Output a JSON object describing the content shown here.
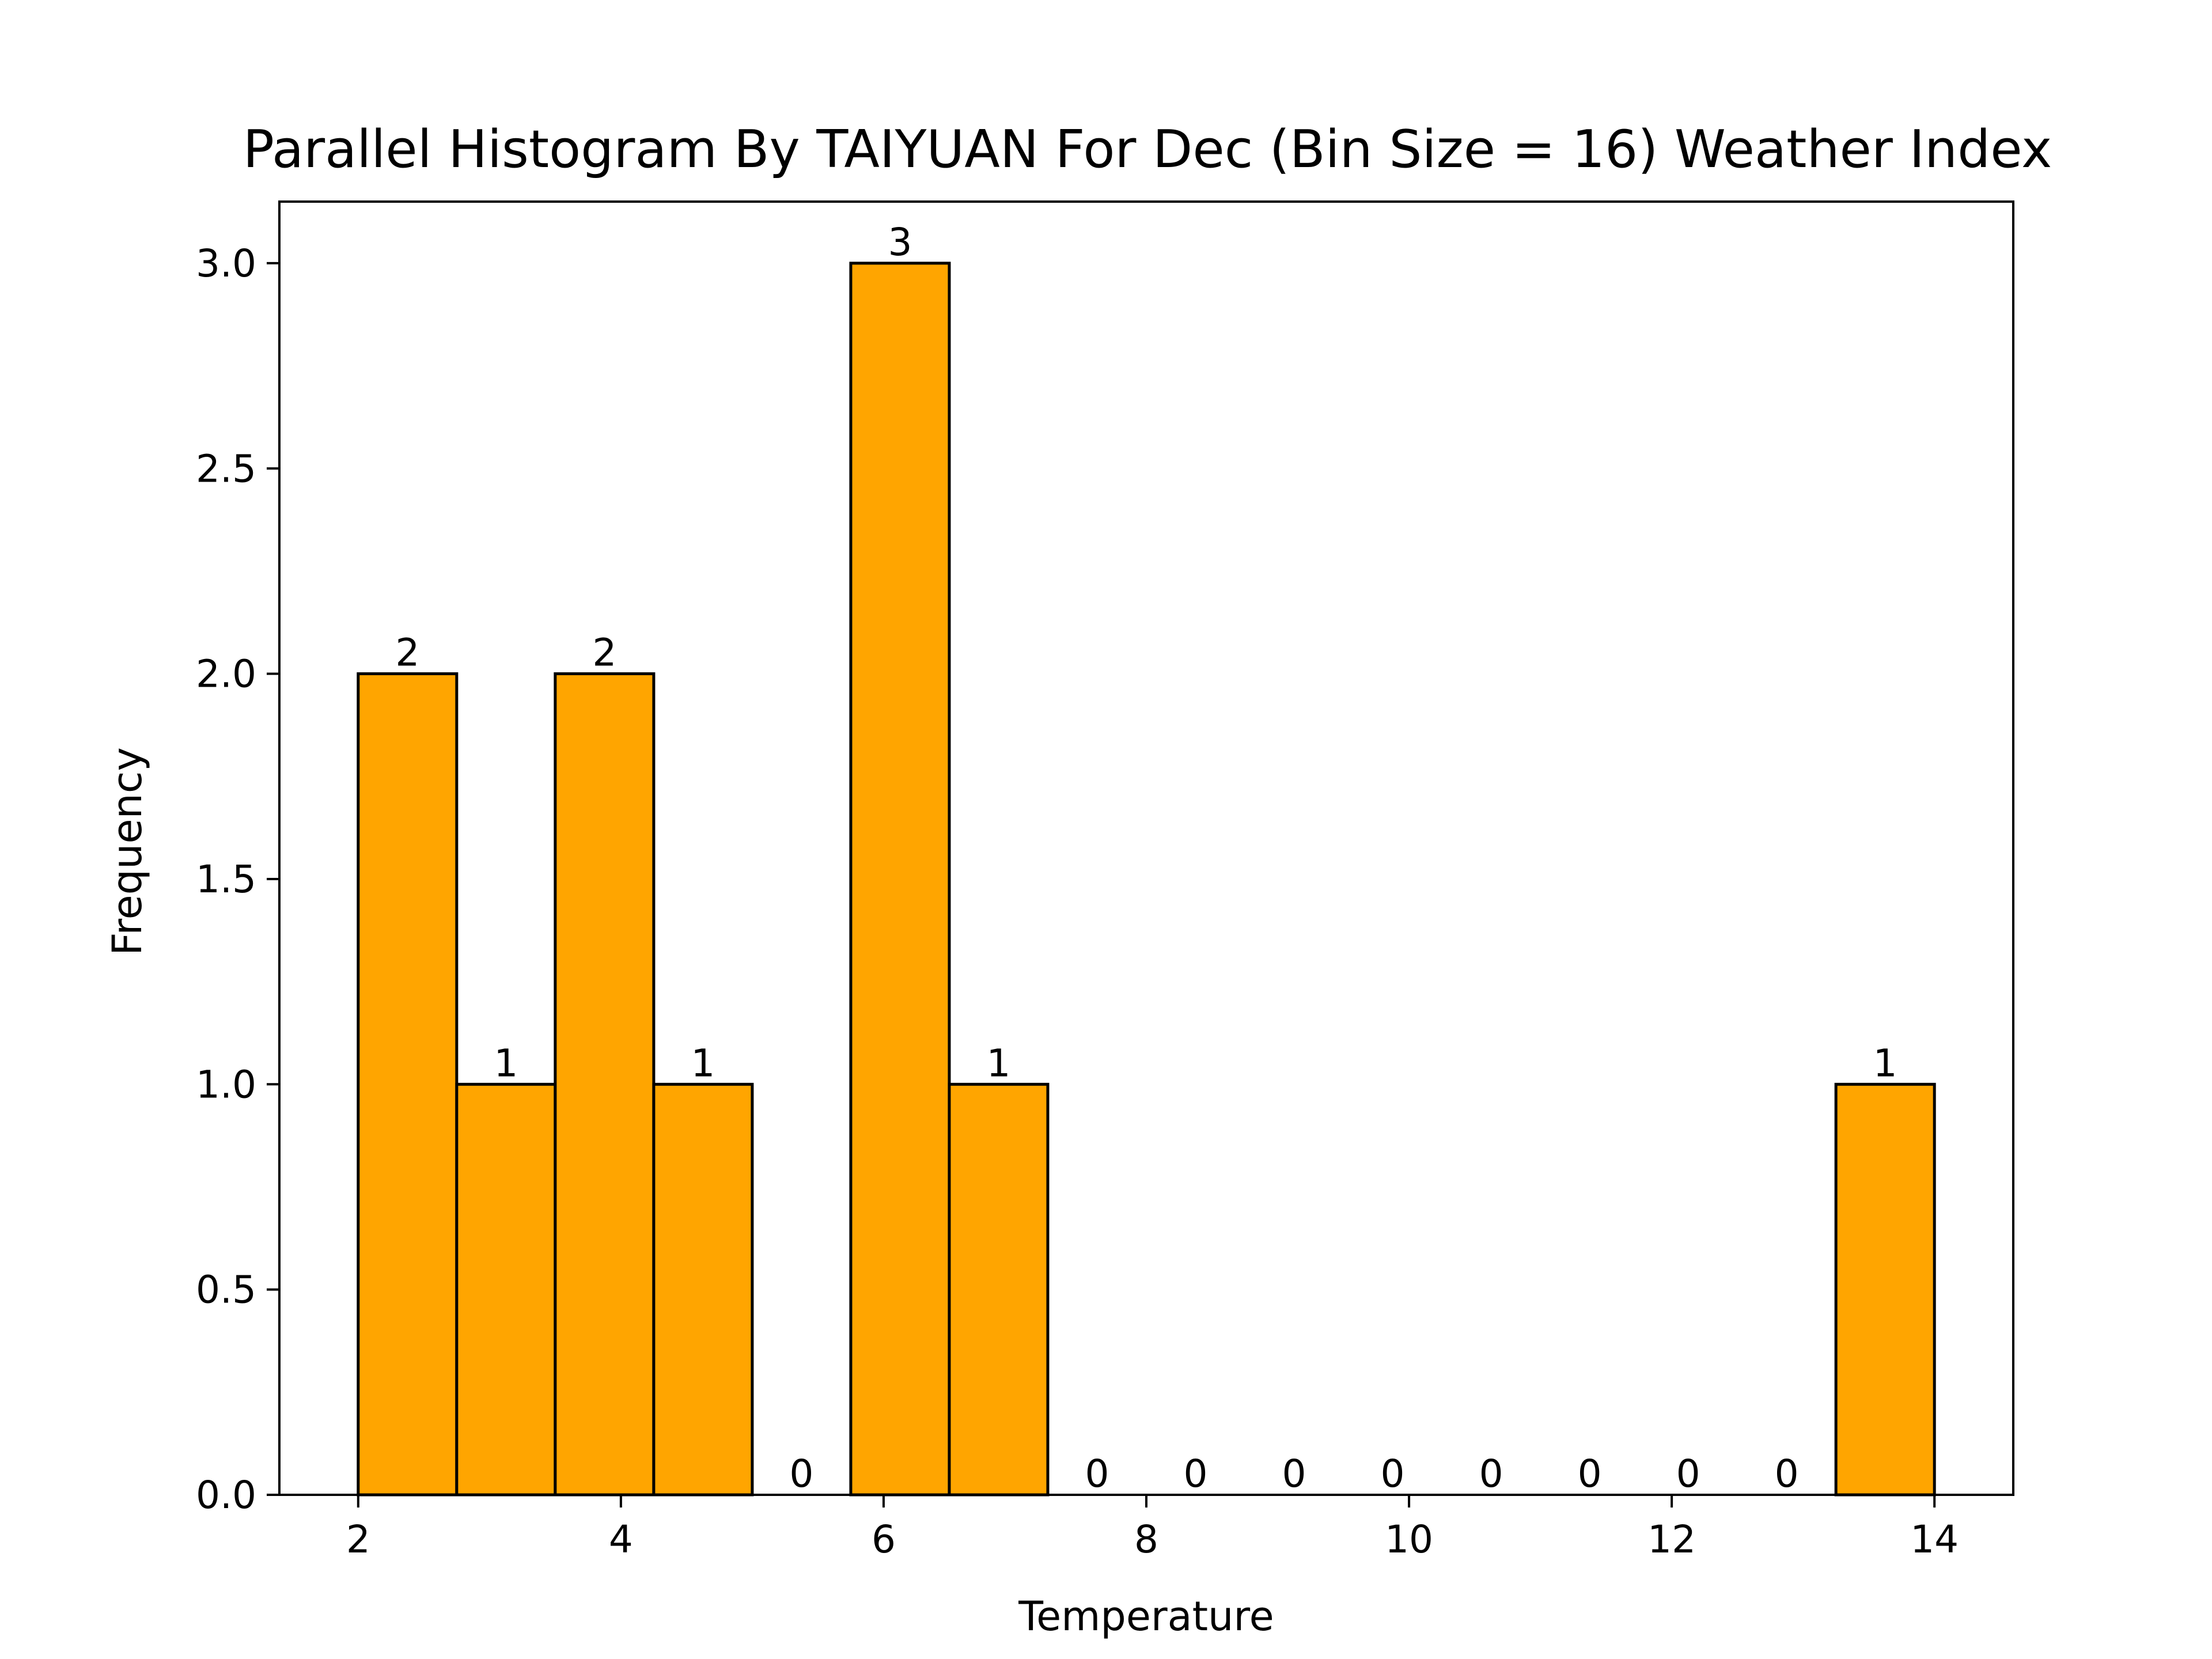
{
  "chart_data": {
    "type": "bar",
    "title": "Parallel Histogram By TAIYUAN For Dec (Bin Size = 16) Weather Index",
    "xlabel": "Temperature",
    "ylabel": "Frequency",
    "xlim": [
      1.4,
      14.6
    ],
    "ylim": [
      0,
      3.15
    ],
    "x_ticks": [
      "2",
      "4",
      "6",
      "8",
      "10",
      "12",
      "14"
    ],
    "x_tick_values": [
      2,
      4,
      6,
      8,
      10,
      12,
      14
    ],
    "y_ticks": [
      "0.0",
      "0.5",
      "1.0",
      "1.5",
      "2.0",
      "2.5",
      "3.0"
    ],
    "y_tick_values": [
      0,
      0.5,
      1.0,
      1.5,
      2.0,
      2.5,
      3.0
    ],
    "bin_edges": [
      2,
      2.75,
      3.5,
      4.25,
      5,
      5.75,
      6.5,
      7.25,
      8,
      8.75,
      9.5,
      10.25,
      11,
      11.75,
      12.5,
      13.25,
      14
    ],
    "values": [
      2,
      1,
      2,
      1,
      0,
      3,
      1,
      0,
      0,
      0,
      0,
      0,
      0,
      0,
      0,
      1
    ],
    "bar_labels": [
      "2",
      "1",
      "2",
      "1",
      "0",
      "3",
      "1",
      "0",
      "0",
      "0",
      "0",
      "0",
      "0",
      "0",
      "0",
      "1"
    ],
    "bar_color": "#ffa500",
    "edge_color": "#000000",
    "grid": false,
    "legend": "none"
  }
}
